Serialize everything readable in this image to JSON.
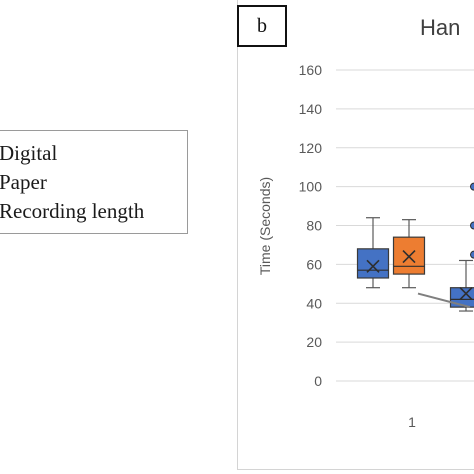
{
  "legend": {
    "items": [
      "Digital",
      "Paper",
      "Recording length"
    ]
  },
  "panel": {
    "label": "b"
  },
  "chart_data": {
    "type": "box",
    "title": "Han",
    "xlabel": "",
    "ylabel": "Time (Seconds)",
    "ylim": [
      0,
      160
    ],
    "yticks": [
      0,
      20,
      40,
      60,
      80,
      100,
      120,
      140,
      160
    ],
    "categories": [
      "1"
    ],
    "grid": true,
    "colors": {
      "digital": "#4472c4",
      "paper": "#ed7d31",
      "line": "#7f7f7f",
      "grid": "#d9d9d9"
    },
    "series": [
      {
        "name": "Digital",
        "group": "1",
        "min": 48,
        "q1": 53,
        "median": 57,
        "q3": 68,
        "max": 84,
        "mean": 59,
        "outliers": []
      },
      {
        "name": "Paper",
        "group": "1",
        "min": 48,
        "q1": 55,
        "median": 59,
        "q3": 74,
        "max": 83,
        "mean": 64,
        "outliers": []
      },
      {
        "name": "Digital",
        "group": "2",
        "min": 36,
        "q1": 38,
        "median": 42,
        "q3": 48,
        "max": 62,
        "mean": 45,
        "outliers": [
          100,
          80,
          65
        ]
      }
    ],
    "recording_length": {
      "name": "Recording length",
      "values": [
        45,
        38
      ]
    }
  }
}
